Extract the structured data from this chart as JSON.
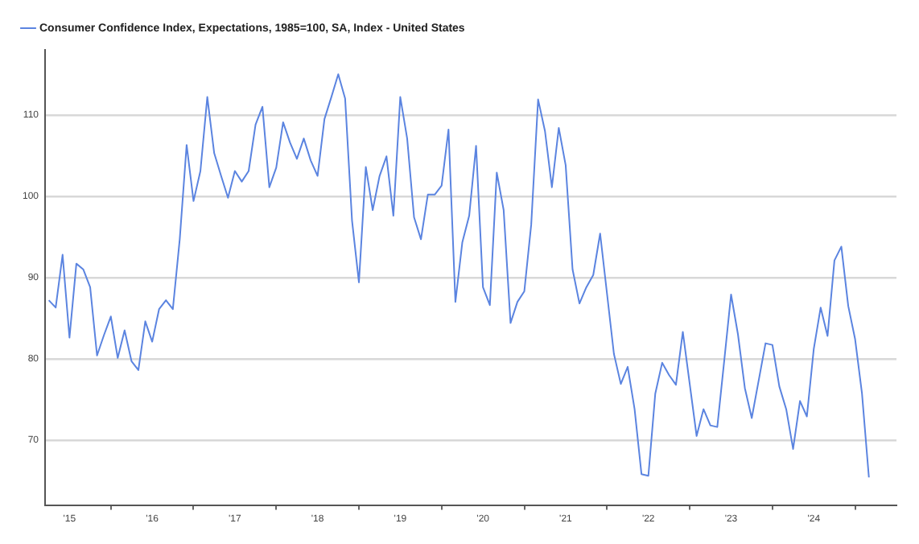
{
  "chart_data": {
    "type": "line",
    "x": [
      "2015-04",
      "2015-05",
      "2015-06",
      "2015-07",
      "2015-08",
      "2015-09",
      "2015-10",
      "2015-11",
      "2015-12",
      "2016-01",
      "2016-02",
      "2016-03",
      "2016-04",
      "2016-05",
      "2016-06",
      "2016-07",
      "2016-08",
      "2016-09",
      "2016-10",
      "2016-11",
      "2016-12",
      "2017-01",
      "2017-02",
      "2017-03",
      "2017-04",
      "2017-05",
      "2017-06",
      "2017-07",
      "2017-08",
      "2017-09",
      "2017-10",
      "2017-11",
      "2017-12",
      "2018-01",
      "2018-02",
      "2018-03",
      "2018-04",
      "2018-05",
      "2018-06",
      "2018-07",
      "2018-08",
      "2018-09",
      "2018-10",
      "2018-11",
      "2018-12",
      "2019-01",
      "2019-02",
      "2019-03",
      "2019-04",
      "2019-05",
      "2019-06",
      "2019-07",
      "2019-08",
      "2019-09",
      "2019-10",
      "2019-11",
      "2019-12",
      "2020-01",
      "2020-02",
      "2020-03",
      "2020-04",
      "2020-05",
      "2020-06",
      "2020-07",
      "2020-08",
      "2020-09",
      "2020-10",
      "2020-11",
      "2020-12",
      "2021-01",
      "2021-02",
      "2021-03",
      "2021-04",
      "2021-05",
      "2021-06",
      "2021-07",
      "2021-08",
      "2021-09",
      "2021-10",
      "2021-11",
      "2021-12",
      "2022-01",
      "2022-02",
      "2022-03",
      "2022-04",
      "2022-05",
      "2022-06",
      "2022-07",
      "2022-08",
      "2022-09",
      "2022-10",
      "2022-11",
      "2022-12",
      "2023-01",
      "2023-02",
      "2023-03",
      "2023-04",
      "2023-05",
      "2023-06",
      "2023-07",
      "2023-08",
      "2023-09",
      "2023-10",
      "2023-11",
      "2023-12",
      "2024-01",
      "2024-02",
      "2024-03",
      "2024-04",
      "2024-05",
      "2024-06",
      "2024-07",
      "2024-08",
      "2024-09",
      "2024-10",
      "2024-11",
      "2024-12",
      "2025-01",
      "2025-02",
      "2025-03"
    ],
    "series": [
      {
        "name": "Consumer Confidence Index, Expectations, 1985=100, SA, Index - United States",
        "color": "#5b84e0",
        "values": [
          87.2,
          86.3,
          92.8,
          82.6,
          91.7,
          91.0,
          88.8,
          80.4,
          82.9,
          85.2,
          80.1,
          83.5,
          79.7,
          78.6,
          84.6,
          82.1,
          86.1,
          87.2,
          86.1,
          94.7,
          106.3,
          99.4,
          103.1,
          112.2,
          105.3,
          102.5,
          99.8,
          103.1,
          101.8,
          103.1,
          108.8,
          111.0,
          101.1,
          103.5,
          109.1,
          106.6,
          104.6,
          107.1,
          104.4,
          102.5,
          109.5,
          112.2,
          115.0,
          112.0,
          97.0,
          89.4,
          103.6,
          98.3,
          102.5,
          104.9,
          97.6,
          112.2,
          107.1,
          97.4,
          94.7,
          100.2,
          100.2,
          101.3,
          108.2,
          87.0,
          94.3,
          97.6,
          106.2,
          88.8,
          86.6,
          102.9,
          98.3,
          84.4,
          87.0,
          88.3,
          96.5,
          111.9,
          108.0,
          101.1,
          108.4,
          103.8,
          91.0,
          86.8,
          88.8,
          90.3,
          95.4,
          88.0,
          80.6,
          76.9,
          79.0,
          73.8,
          65.8,
          65.6,
          75.7,
          79.5,
          78.0,
          76.8,
          83.3,
          76.9,
          70.5,
          73.8,
          71.8,
          71.6,
          79.7,
          87.9,
          83.0,
          76.4,
          72.7,
          77.3,
          81.9,
          81.7,
          76.6,
          73.8,
          68.9,
          74.8,
          72.9,
          81.2,
          86.3,
          82.8,
          92.1,
          93.8,
          86.5,
          82.4,
          75.7,
          65.4
        ]
      }
    ],
    "xlim": [
      "2015-03-15",
      "2025-07"
    ],
    "xticks": [
      {
        "value": "2015-07",
        "label": "'15"
      },
      {
        "value": "2016-01",
        "label": null
      },
      {
        "value": "2016-07",
        "label": "'16"
      },
      {
        "value": "2017-01",
        "label": null
      },
      {
        "value": "2017-07",
        "label": "'17"
      },
      {
        "value": "2018-01",
        "label": null
      },
      {
        "value": "2018-07",
        "label": "'18"
      },
      {
        "value": "2019-01",
        "label": null
      },
      {
        "value": "2019-07",
        "label": "'19"
      },
      {
        "value": "2020-01",
        "label": null
      },
      {
        "value": "2020-07",
        "label": "'20"
      },
      {
        "value": "2021-01",
        "label": null
      },
      {
        "value": "2021-07",
        "label": "'21"
      },
      {
        "value": "2022-01",
        "label": null
      },
      {
        "value": "2022-07",
        "label": "'22"
      },
      {
        "value": "2023-01",
        "label": null
      },
      {
        "value": "2023-07",
        "label": "'23"
      },
      {
        "value": "2024-01",
        "label": null
      },
      {
        "value": "2024-07",
        "label": "'24"
      },
      {
        "value": "2025-01",
        "label": null
      }
    ],
    "ylim": [
      62,
      118
    ],
    "yticks": [
      70,
      80,
      90,
      100,
      110
    ],
    "grid": "y",
    "legend": "top left",
    "marker": "none",
    "line_style": "solid"
  }
}
